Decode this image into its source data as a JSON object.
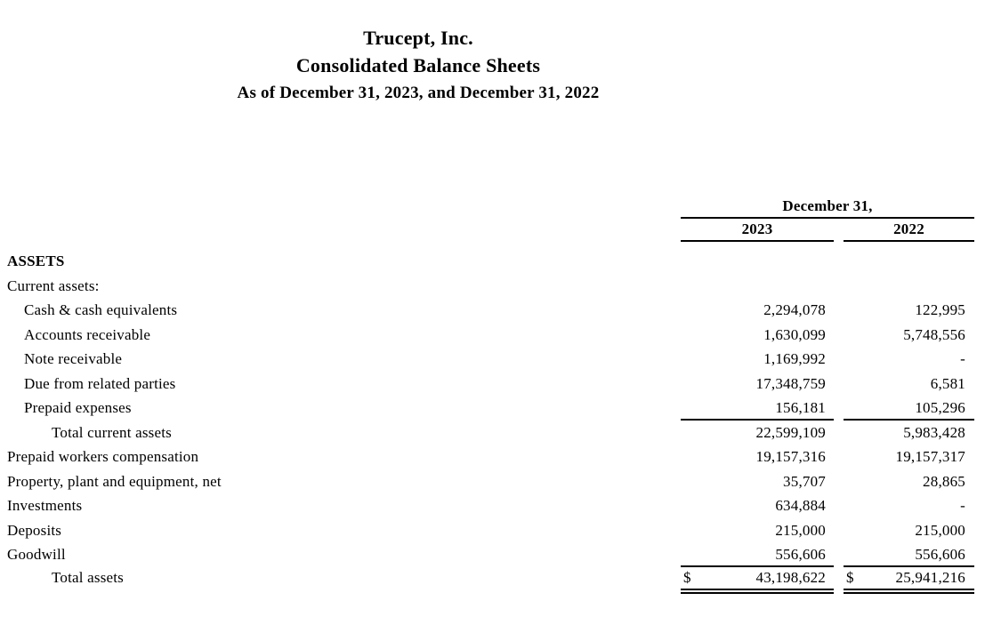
{
  "header": {
    "company": "Trucept, Inc.",
    "title": "Consolidated Balance Sheets",
    "subtitle": "As of December 31, 2023, and December 31, 2022"
  },
  "table": {
    "date_header": "December 31,",
    "col_2023": "2023",
    "col_2022": "2022",
    "dollar": "$",
    "rows": [
      {
        "label": "ASSETS",
        "v2023": "",
        "v2022": ""
      },
      {
        "label": "Current assets:",
        "v2023": "",
        "v2022": ""
      },
      {
        "label": "Cash & cash equivalents",
        "v2023": "2,294,078",
        "v2022": "122,995"
      },
      {
        "label": "Accounts receivable",
        "v2023": "1,630,099",
        "v2022": "5,748,556"
      },
      {
        "label": "Note receivable",
        "v2023": "1,169,992",
        "v2022": "-"
      },
      {
        "label": "Due from related parties",
        "v2023": "17,348,759",
        "v2022": "6,581"
      },
      {
        "label": "Prepaid expenses",
        "v2023": "156,181",
        "v2022": "105,296"
      },
      {
        "label": "Total current assets",
        "v2023": "22,599,109",
        "v2022": "5,983,428"
      },
      {
        "label": "Prepaid workers compensation",
        "v2023": "19,157,316",
        "v2022": "19,157,317"
      },
      {
        "label": "Property, plant and equipment, net",
        "v2023": "35,707",
        "v2022": "28,865"
      },
      {
        "label": "Investments",
        "v2023": "634,884",
        "v2022": "-"
      },
      {
        "label": "Deposits",
        "v2023": "215,000",
        "v2022": "215,000"
      },
      {
        "label": "Goodwill",
        "v2023": "556,606",
        "v2022": "556,606"
      },
      {
        "label": "Total assets",
        "v2023": "43,198,622",
        "v2022": "25,941,216"
      }
    ]
  }
}
